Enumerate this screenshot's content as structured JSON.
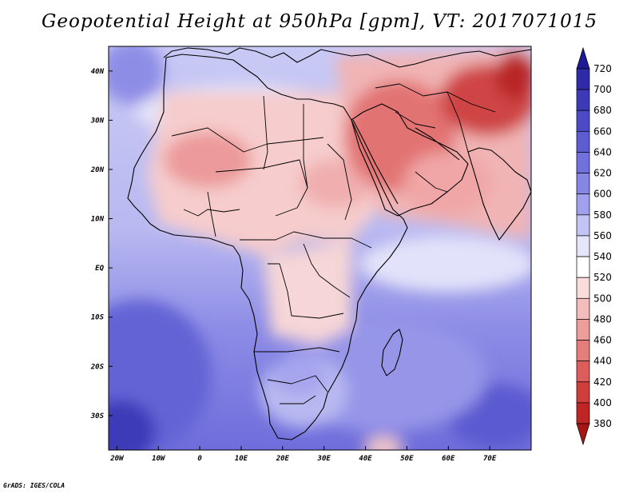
{
  "title": "Geopotential Height at 950hPa [gpm], VT: 2017071015",
  "credit": "GrADS: IGES/COLA",
  "map": {
    "variable": "Geopotential Height",
    "level": "950hPa",
    "units": "gpm",
    "valid_time": "2017071015",
    "lon_range": [
      -22,
      80
    ],
    "lat_range": [
      -37,
      45
    ],
    "lon_ticks": [
      {
        "value": -20,
        "label": "20W"
      },
      {
        "value": -10,
        "label": "10W"
      },
      {
        "value": 0,
        "label": "0"
      },
      {
        "value": 10,
        "label": "10E"
      },
      {
        "value": 20,
        "label": "20E"
      },
      {
        "value": 30,
        "label": "30E"
      },
      {
        "value": 40,
        "label": "40E"
      },
      {
        "value": 50,
        "label": "50E"
      },
      {
        "value": 60,
        "label": "60E"
      },
      {
        "value": 70,
        "label": "70E"
      }
    ],
    "lat_ticks": [
      {
        "value": 40,
        "label": "40N"
      },
      {
        "value": 30,
        "label": "30N"
      },
      {
        "value": 20,
        "label": "20N"
      },
      {
        "value": 10,
        "label": "10N"
      },
      {
        "value": 0,
        "label": "EQ"
      },
      {
        "value": -10,
        "label": "10S"
      },
      {
        "value": -20,
        "label": "20S"
      },
      {
        "value": -30,
        "label": "30S"
      }
    ]
  },
  "colorbar": {
    "levels": [
      720,
      700,
      680,
      660,
      640,
      620,
      600,
      580,
      560,
      540,
      520,
      500,
      480,
      460,
      440,
      420,
      400,
      380
    ],
    "colors": [
      "#1e1a96",
      "#2e2aa8",
      "#3d3ab8",
      "#4c4ac6",
      "#5d5cd2",
      "#7170dc",
      "#8786e4",
      "#a1a0ec",
      "#c3c3f4",
      "#e6e6fb",
      "#ffffff",
      "#fbdcdc",
      "#f5bcbc",
      "#ee9d9d",
      "#e67d7d",
      "#dd5c5c",
      "#d13d3d",
      "#c02424",
      "#a81515"
    ]
  },
  "field_regions": [
    {
      "name": "south-atlantic-high",
      "value": 640
    },
    {
      "name": "sahara-heat-low",
      "value": 500
    },
    {
      "name": "arabian-heat-low",
      "value": 470
    },
    {
      "name": "pakistan-heat-low",
      "value": 440
    },
    {
      "name": "equatorial-belt",
      "value": 560
    },
    {
      "name": "indian-ocean-high",
      "value": 610
    }
  ]
}
